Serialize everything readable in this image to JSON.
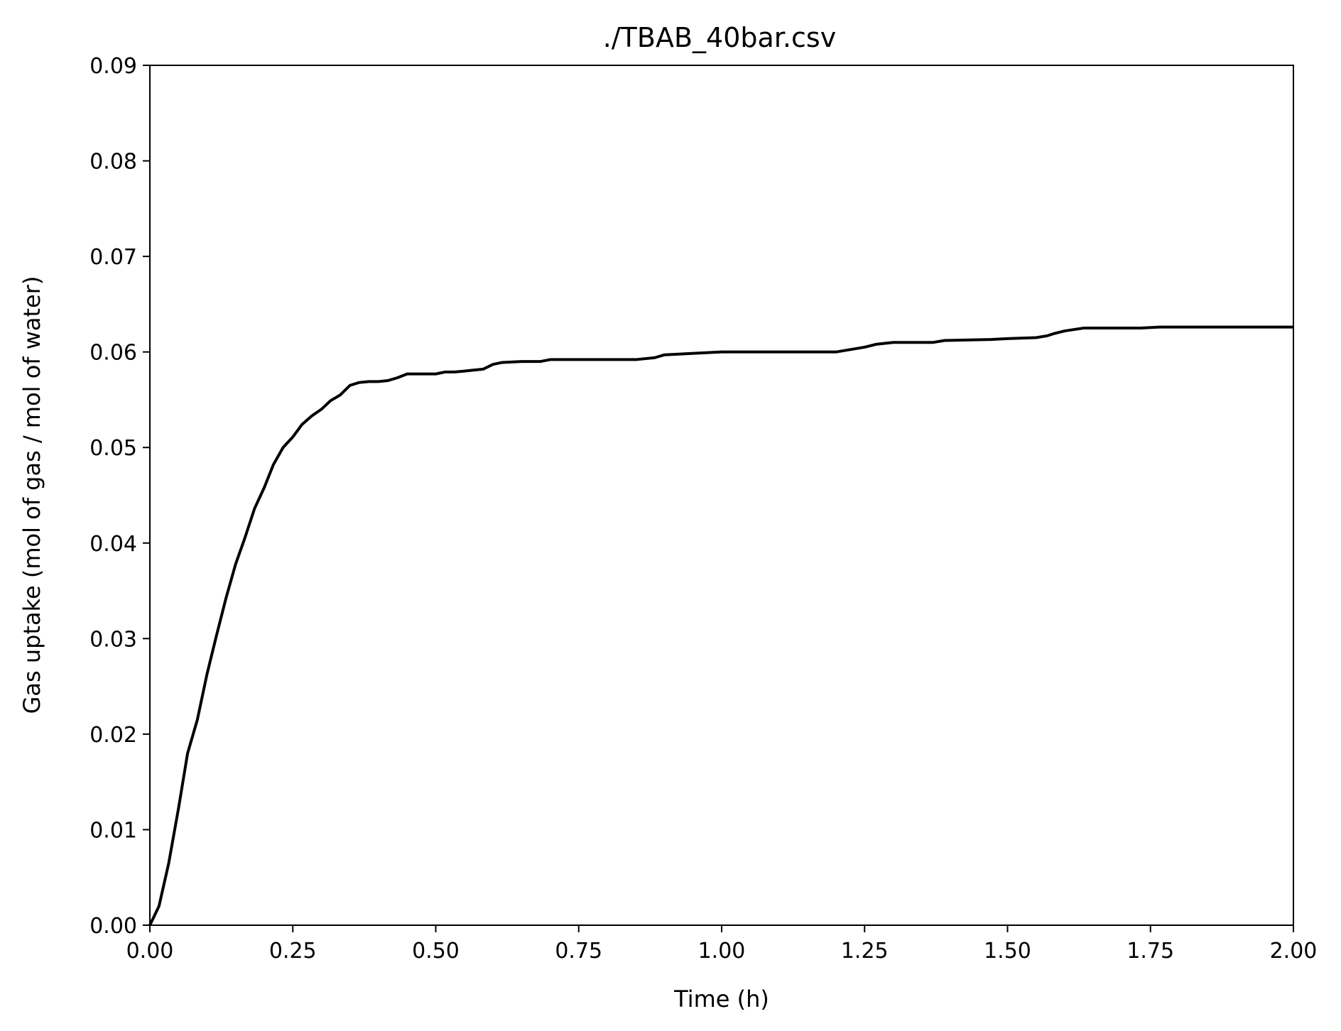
{
  "chart_data": {
    "type": "line",
    "title": "./TBAB_40bar.csv",
    "xlabel": "Time (h)",
    "ylabel": "Gas uptake (mol of gas / mol of water)",
    "xlim": [
      0,
      2
    ],
    "ylim": [
      0,
      0.09
    ],
    "grid": false,
    "legend": "none",
    "line_color": "#000000",
    "x_ticks": [
      "0.00",
      "0.25",
      "0.50",
      "0.75",
      "1.00",
      "1.25",
      "1.50",
      "1.75",
      "2.00"
    ],
    "y_ticks": [
      "0.00",
      "0.01",
      "0.02",
      "0.03",
      "0.04",
      "0.05",
      "0.06",
      "0.07",
      "0.08",
      "0.09"
    ],
    "series": [
      {
        "x": [
          0.0,
          0.016,
          0.033,
          0.05,
          0.066,
          0.083,
          0.1,
          0.116,
          0.133,
          0.15,
          0.166,
          0.183,
          0.2,
          0.216,
          0.233,
          0.25,
          0.266,
          0.283,
          0.3,
          0.316,
          0.333,
          0.35,
          0.366,
          0.383,
          0.4,
          0.416,
          0.433,
          0.45,
          0.5,
          0.516,
          0.533,
          0.55,
          0.566,
          0.583,
          0.6,
          0.616,
          0.65,
          0.683,
          0.7,
          0.75,
          0.85,
          0.883,
          0.9,
          0.933,
          0.966,
          1.0,
          1.2,
          1.25,
          1.27,
          1.3,
          1.37,
          1.39,
          1.47,
          1.5,
          1.55,
          1.57,
          1.58,
          1.6,
          1.633,
          1.733,
          1.766,
          1.9,
          1.95,
          2.0
        ],
        "y": [
          0.0,
          0.002,
          0.0065,
          0.0122,
          0.018,
          0.0215,
          0.0263,
          0.0302,
          0.0342,
          0.0378,
          0.0405,
          0.0436,
          0.0458,
          0.0482,
          0.05,
          0.0511,
          0.0524,
          0.0533,
          0.054,
          0.0549,
          0.0555,
          0.0565,
          0.0568,
          0.0569,
          0.0569,
          0.057,
          0.0573,
          0.0577,
          0.0577,
          0.0579,
          0.0579,
          0.058,
          0.0581,
          0.0582,
          0.0587,
          0.0589,
          0.059,
          0.059,
          0.0592,
          0.0592,
          0.0592,
          0.0594,
          0.0597,
          0.0598,
          0.0599,
          0.06,
          0.06,
          0.0605,
          0.0608,
          0.061,
          0.061,
          0.0612,
          0.0613,
          0.0614,
          0.0615,
          0.0617,
          0.0619,
          0.0622,
          0.0625,
          0.0625,
          0.0626,
          0.0626,
          0.0626,
          0.0626
        ]
      }
    ]
  }
}
